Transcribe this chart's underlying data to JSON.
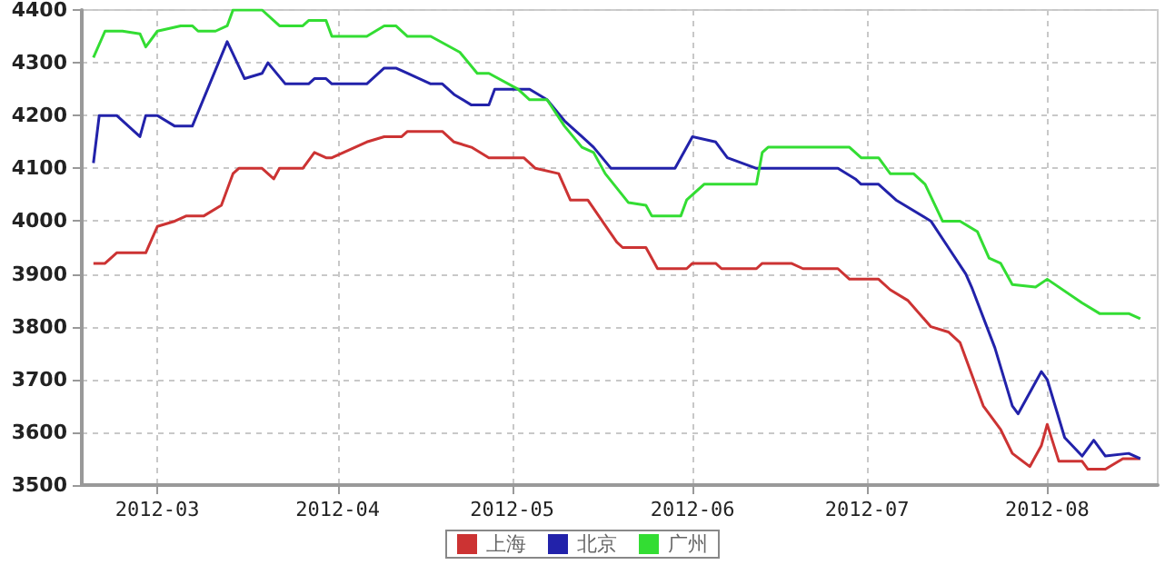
{
  "chart_data": {
    "type": "line",
    "legend": "bottom",
    "grid": true,
    "marker": "none",
    "line_style": "solid",
    "xlim": [
      "2012-02-17",
      "2012-08-20"
    ],
    "xticks": [
      {
        "value": "2012-03-01",
        "label": "2012-03"
      },
      {
        "value": "2012-04-01",
        "label": "2012-04"
      },
      {
        "value": "2012-05-01",
        "label": "2012-05"
      },
      {
        "value": "2012-06-01",
        "label": "2012-06"
      },
      {
        "value": "2012-07-01",
        "label": "2012-07"
      },
      {
        "value": "2012-08-01",
        "label": "2012-08"
      }
    ],
    "ylim": [
      3500,
      4400
    ],
    "yticks": [
      3500,
      3600,
      3700,
      3800,
      3900,
      4000,
      4100,
      4200,
      4300,
      4400
    ],
    "series": [
      {
        "name": "上海",
        "color": "#cc3333",
        "x": [
          "2012-02-19",
          "2012-02-21",
          "2012-02-23",
          "2012-02-28",
          "2012-03-01",
          "2012-03-04",
          "2012-03-06",
          "2012-03-09",
          "2012-03-12",
          "2012-03-14",
          "2012-03-15",
          "2012-03-19",
          "2012-03-21",
          "2012-03-22",
          "2012-03-26",
          "2012-03-28",
          "2012-03-30",
          "2012-03-31",
          "2012-04-06",
          "2012-04-09",
          "2012-04-12",
          "2012-04-13",
          "2012-04-19",
          "2012-04-21",
          "2012-04-24",
          "2012-04-27",
          "2012-05-03",
          "2012-05-05",
          "2012-05-09",
          "2012-05-11",
          "2012-05-14",
          "2012-05-19",
          "2012-05-20",
          "2012-05-24",
          "2012-05-26",
          "2012-05-31",
          "2012-06-01",
          "2012-06-05",
          "2012-06-06",
          "2012-06-12",
          "2012-06-13",
          "2012-06-18",
          "2012-06-20",
          "2012-06-26",
          "2012-06-28",
          "2012-07-03",
          "2012-07-05",
          "2012-07-08",
          "2012-07-12",
          "2012-07-15",
          "2012-07-17",
          "2012-07-21",
          "2012-07-24",
          "2012-07-26",
          "2012-07-29",
          "2012-07-31",
          "2012-08-01",
          "2012-08-03",
          "2012-08-07",
          "2012-08-08",
          "2012-08-11",
          "2012-08-14",
          "2012-08-17"
        ],
        "values": [
          3920,
          3920,
          3940,
          3940,
          3990,
          4000,
          4010,
          4010,
          4030,
          4090,
          4100,
          4100,
          4080,
          4100,
          4100,
          4130,
          4120,
          4120,
          4150,
          4160,
          4160,
          4170,
          4170,
          4150,
          4140,
          4120,
          4120,
          4100,
          4090,
          4040,
          4040,
          3960,
          3950,
          3950,
          3910,
          3910,
          3920,
          3920,
          3910,
          3910,
          3920,
          3920,
          3910,
          3910,
          3890,
          3890,
          3870,
          3850,
          3800,
          3790,
          3770,
          3650,
          3605,
          3560,
          3535,
          3575,
          3615,
          3545,
          3545,
          3530,
          3530,
          3550,
          3550
        ]
      },
      {
        "name": "北京",
        "color": "#2222aa",
        "x": [
          "2012-02-19",
          "2012-02-20",
          "2012-02-23",
          "2012-02-27",
          "2012-02-28",
          "2012-03-01",
          "2012-03-04",
          "2012-03-07",
          "2012-03-13",
          "2012-03-16",
          "2012-03-19",
          "2012-03-20",
          "2012-03-23",
          "2012-03-27",
          "2012-03-28",
          "2012-03-30",
          "2012-03-31",
          "2012-04-06",
          "2012-04-09",
          "2012-04-11",
          "2012-04-13",
          "2012-04-17",
          "2012-04-19",
          "2012-04-21",
          "2012-04-24",
          "2012-04-27",
          "2012-04-28",
          "2012-05-04",
          "2012-05-07",
          "2012-05-10",
          "2012-05-13",
          "2012-05-15",
          "2012-05-18",
          "2012-05-29",
          "2012-06-01",
          "2012-06-05",
          "2012-06-07",
          "2012-06-12",
          "2012-06-26",
          "2012-06-29",
          "2012-06-30",
          "2012-07-03",
          "2012-07-06",
          "2012-07-12",
          "2012-07-15",
          "2012-07-18",
          "2012-07-19",
          "2012-07-23",
          "2012-07-26",
          "2012-07-27",
          "2012-07-31",
          "2012-08-01",
          "2012-08-04",
          "2012-08-07",
          "2012-08-09",
          "2012-08-11",
          "2012-08-15",
          "2012-08-17"
        ],
        "values": [
          4110,
          4200,
          4200,
          4160,
          4200,
          4200,
          4180,
          4180,
          4340,
          4270,
          4280,
          4300,
          4260,
          4260,
          4270,
          4270,
          4260,
          4260,
          4290,
          4290,
          4280,
          4260,
          4260,
          4240,
          4220,
          4220,
          4250,
          4250,
          4230,
          4190,
          4160,
          4140,
          4100,
          4100,
          4160,
          4150,
          4120,
          4100,
          4100,
          4080,
          4070,
          4070,
          4040,
          4000,
          3950,
          3900,
          3875,
          3760,
          3650,
          3635,
          3715,
          3700,
          3590,
          3555,
          3585,
          3555,
          3560,
          3550
        ]
      },
      {
        "name": "广州",
        "color": "#33dd33",
        "x": [
          "2012-02-19",
          "2012-02-21",
          "2012-02-24",
          "2012-02-27",
          "2012-02-28",
          "2012-03-01",
          "2012-03-05",
          "2012-03-07",
          "2012-03-08",
          "2012-03-11",
          "2012-03-13",
          "2012-03-14",
          "2012-03-19",
          "2012-03-21",
          "2012-03-22",
          "2012-03-26",
          "2012-03-27",
          "2012-03-30",
          "2012-03-31",
          "2012-04-06",
          "2012-04-09",
          "2012-04-11",
          "2012-04-13",
          "2012-04-17",
          "2012-04-22",
          "2012-04-25",
          "2012-04-27",
          "2012-05-02",
          "2012-05-04",
          "2012-05-07",
          "2012-05-10",
          "2012-05-13",
          "2012-05-15",
          "2012-05-17",
          "2012-05-21",
          "2012-05-24",
          "2012-05-25",
          "2012-05-30",
          "2012-05-31",
          "2012-06-03",
          "2012-06-12",
          "2012-06-13",
          "2012-06-14",
          "2012-06-28",
          "2012-06-30",
          "2012-07-03",
          "2012-07-05",
          "2012-07-09",
          "2012-07-11",
          "2012-07-14",
          "2012-07-17",
          "2012-07-20",
          "2012-07-22",
          "2012-07-24",
          "2012-07-26",
          "2012-07-30",
          "2012-08-01",
          "2012-08-07",
          "2012-08-10",
          "2012-08-15",
          "2012-08-17"
        ],
        "values": [
          4310,
          4360,
          4360,
          4355,
          4330,
          4360,
          4370,
          4370,
          4360,
          4360,
          4370,
          4400,
          4400,
          4380,
          4370,
          4370,
          4380,
          4380,
          4350,
          4350,
          4370,
          4370,
          4350,
          4350,
          4320,
          4280,
          4280,
          4250,
          4230,
          4230,
          4180,
          4140,
          4130,
          4090,
          4035,
          4030,
          4010,
          4010,
          4040,
          4070,
          4070,
          4130,
          4140,
          4140,
          4120,
          4120,
          4090,
          4090,
          4070,
          4000,
          4000,
          3980,
          3930,
          3920,
          3880,
          3875,
          3890,
          3845,
          3825,
          3825,
          3815
        ]
      }
    ]
  }
}
